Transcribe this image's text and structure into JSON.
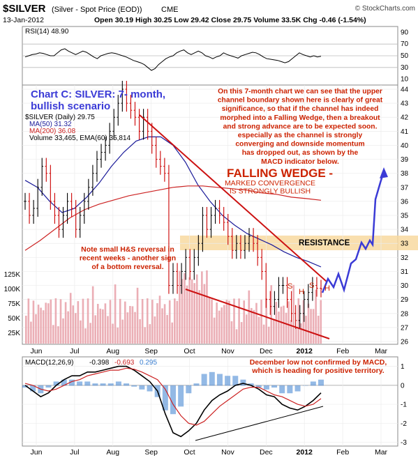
{
  "header": {
    "symbol": "$SILVER",
    "desc": "(Silver - Spot Price (EOD))",
    "exchange": "CME",
    "watermark": "© StockCharts.com",
    "date": "13-Jan-2012",
    "quote_line": "Open 30.19  High 30.25  Low 29.42  Close 29.75  Volume 33.5K  Chg -0.46 (-1.54%)"
  },
  "colors": {
    "price_up": "#000000",
    "price_down": "#cc0000",
    "ma50": "#1a1a99",
    "ma200": "#cc2222",
    "volume": "#e8a0a8",
    "annotation_blue": "#3b3bd6",
    "annotation_red": "#cc2200",
    "resistance_band": "#f8d9a0",
    "macd_hist": "#3b7fd0",
    "signal": "#cc2222",
    "rsi_line": "#000000"
  },
  "chart_data": [
    {
      "type": "line",
      "panel": "rsi",
      "legend": "RSI(14) 48.90",
      "y_ticks": [
        10,
        30,
        50,
        70,
        90
      ],
      "ylim": [
        0,
        100
      ],
      "series": [
        {
          "name": "RSI(14)",
          "values": [
            48,
            50,
            52,
            53,
            55,
            54,
            52,
            50,
            50,
            55,
            60,
            62,
            58,
            55,
            52,
            55,
            58,
            56,
            52,
            48,
            45,
            50,
            52,
            54,
            55,
            54,
            52,
            50,
            48,
            45,
            42,
            40,
            38,
            35,
            30,
            25,
            28,
            35,
            40,
            45,
            48,
            50,
            55,
            58,
            60,
            55,
            52,
            55,
            58,
            55,
            50,
            48,
            45,
            48,
            50,
            55,
            52,
            50,
            48,
            46,
            50,
            52,
            54,
            56,
            55,
            52,
            48,
            45,
            44,
            43,
            42,
            40,
            38,
            40,
            45,
            50,
            55,
            52,
            50,
            48,
            50,
            48,
            49
          ]
        }
      ]
    },
    {
      "type": "line",
      "panel": "price",
      "legend_main": "$SILVER (Daily) 29.75",
      "legend_ma50": "MA(50) 31.32",
      "legend_ma200": "MA(200) 36.08",
      "legend_vol": "Volume 33,465, EMA(60) 35,814",
      "ylim": [
        25.8,
        44.3
      ],
      "x_labels": [
        "Jun",
        "Jul",
        "Aug",
        "Sep",
        "Oct",
        "Nov",
        "Dec",
        "2012",
        "Feb",
        "Mar"
      ],
      "y_ticks": [
        26,
        27,
        28,
        29,
        30,
        31,
        32,
        33,
        34,
        35,
        36,
        37,
        38,
        39,
        40,
        41,
        42,
        43,
        44
      ],
      "volume_ticks": [
        "25K",
        "50K",
        "75K",
        "100K",
        "125K"
      ],
      "series": [
        {
          "name": "$SILVER",
          "values": [
            36,
            35,
            35.5,
            37,
            38.5,
            38,
            36,
            35,
            34,
            35,
            36,
            35.5,
            34,
            35,
            36,
            37,
            38,
            39,
            39.5,
            40,
            41,
            42,
            43,
            44,
            43,
            42.5,
            42,
            41,
            42,
            41,
            40,
            39,
            38.5,
            38,
            30,
            31,
            30,
            31,
            32,
            31,
            32,
            33,
            35,
            34,
            35,
            35.5,
            35,
            34.5,
            33.5,
            32.5,
            33,
            32.5,
            33,
            33.5,
            33,
            32,
            31,
            29,
            28.5,
            29,
            30,
            30,
            29,
            28,
            27.5,
            28,
            29,
            29.5,
            30,
            29.8,
            29.75
          ]
        },
        {
          "name": "MA(50)",
          "values": [
            37.5,
            37,
            36,
            35.2,
            35.5,
            36.3,
            37.3,
            38.5,
            39.5,
            40.3,
            40.6,
            40.6,
            40,
            38.8,
            37.2,
            36,
            35,
            34.3,
            33.7,
            33.3,
            32.9,
            32.4,
            32,
            31.7,
            31.32
          ]
        },
        {
          "name": "MA(200)",
          "values": [
            32.5,
            33.2,
            34,
            34.8,
            35.4,
            35.8,
            36.1,
            36.4,
            36.6,
            36.8,
            37,
            37.1,
            37.1,
            37,
            36.9,
            36.8,
            36.6,
            36.5,
            36.3,
            36.2,
            36.08
          ]
        }
      ],
      "annotations": {
        "chart_title": "Chart C: SILVER: 7- month,\nbullish scenario",
        "commentary": "On this 7-month chart we can see that the upper\nchannel boundary shown here is clearly of great\nsignificance, so that if the channel has indeed\nmorphed into a Falling Wedge, then a breakout\nand strong advance are to be expected soon.\nespecially as the channel is strongly\nconverging and downside momentum\nhas dropped out, as shown by the\nMACD indicator below.",
        "wedge_title": "FALLING WEDGE -",
        "wedge_sub": "MARKED CONVERGENCE\nIS STRONGLY BULLISH",
        "resistance": "RESISTANCE",
        "hs_note": "Note small H&S reversal in\nrecent weeks - another sign\nof a bottom reversal.",
        "s_label": "S",
        "h_label": "H"
      }
    },
    {
      "type": "line",
      "panel": "macd",
      "legend_name": "MACD(12,26,9)",
      "legend_macd": "-0.398",
      "legend_signal": "-0.693",
      "legend_hist": "0.295",
      "note": "December low not confirmed by MACD,\nwhich is heading for positive territory.",
      "y_ticks": [
        1,
        0,
        -1,
        -2,
        -3
      ],
      "ylim": [
        -3.2,
        1.5
      ],
      "x_labels": [
        "Jun",
        "Jul",
        "Aug",
        "Sep",
        "Oct",
        "Nov",
        "Dec",
        "2012",
        "Feb",
        "Mar"
      ],
      "series": [
        {
          "name": "MACD",
          "values": [
            0,
            -0.3,
            -0.6,
            -0.4,
            0,
            0.3,
            0.5,
            0.5,
            0.7,
            0.7,
            0.8,
            0.9,
            1,
            1,
            0.8,
            0.5,
            0.2,
            -0.3,
            -1.5,
            -2.5,
            -2.7,
            -2.4,
            -2,
            -1.3,
            -0.8,
            -0.5,
            -0.3,
            0,
            0.1,
            0,
            -0.2,
            -0.5,
            -0.6,
            -1,
            -1.2,
            -1.3,
            -1.1,
            -0.8,
            -0.4
          ]
        },
        {
          "name": "Signal",
          "values": [
            0.1,
            0,
            -0.2,
            -0.3,
            -0.2,
            0,
            0.2,
            0.3,
            0.5,
            0.6,
            0.7,
            0.8,
            0.8,
            0.9,
            0.85,
            0.7,
            0.5,
            0.3,
            -0.2,
            -1,
            -1.6,
            -2,
            -2.1,
            -1.9,
            -1.5,
            -1.1,
            -0.8,
            -0.5,
            -0.2,
            -0.1,
            -0.1,
            -0.3,
            -0.5,
            -0.6,
            -0.8,
            -1,
            -1.1,
            -1,
            -0.7
          ]
        }
      ]
    }
  ]
}
